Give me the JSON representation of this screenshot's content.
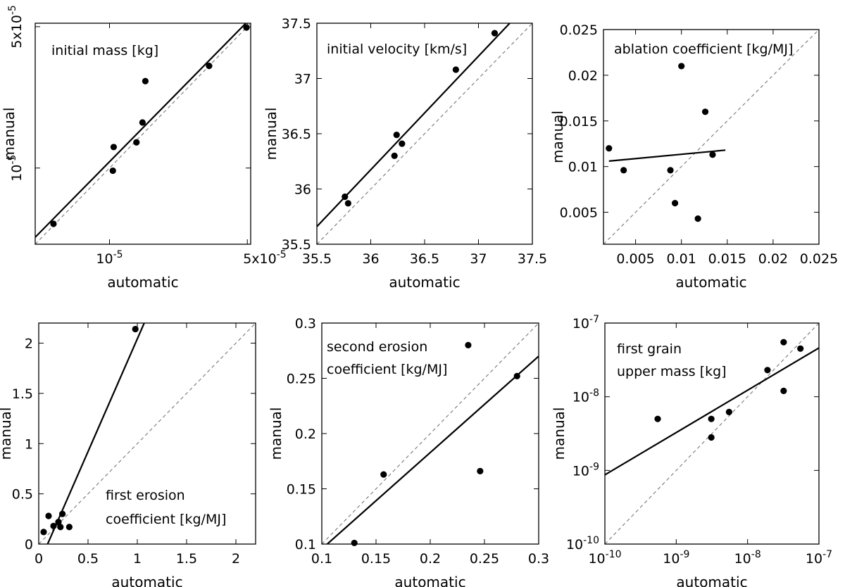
{
  "chart_data": [
    {
      "type": "scatter",
      "scale": "log",
      "annotation": [
        "initial mass [kg]"
      ],
      "xlabel": "automatic",
      "ylabel": "manual",
      "xlim": [
        4.2e-06,
        5.2e-05
      ],
      "ylim": [
        4.2e-06,
        5.2e-05
      ],
      "xticks": [
        {
          "v": 1e-05,
          "base": "10",
          "exp": "-5"
        },
        {
          "v": 5e-05,
          "base": "5x10",
          "exp": "-5"
        }
      ],
      "yticks": [
        {
          "v": 1e-05,
          "base": "10",
          "exp": "-5"
        },
        {
          "v": 5e-05,
          "base": "5x10",
          "exp": "-5"
        }
      ],
      "points": [
        {
          "x": 5.2e-06,
          "y": 5.3e-06
        },
        {
          "x": 1.04e-05,
          "y": 9.7e-06
        },
        {
          "x": 1.05e-05,
          "y": 1.27e-05
        },
        {
          "x": 1.37e-05,
          "y": 1.34e-05
        },
        {
          "x": 1.47e-05,
          "y": 1.68e-05
        },
        {
          "x": 1.52e-05,
          "y": 2.69e-05
        },
        {
          "x": 3.2e-05,
          "y": 3.2e-05
        },
        {
          "x": 4.95e-05,
          "y": 4.95e-05
        }
      ],
      "fit_line": [
        [
          4.2e-06,
          4.55e-06
        ],
        [
          5.2e-05,
          5.5e-05
        ]
      ]
    },
    {
      "type": "scatter",
      "scale": "linear",
      "annotation": [
        "initial velocity [km/s]"
      ],
      "xlabel": "automatic",
      "ylabel": "manual",
      "xlim": [
        35.5,
        37.5
      ],
      "ylim": [
        35.5,
        37.5
      ],
      "xticks": [
        {
          "v": 35.5,
          "label": "35.5"
        },
        {
          "v": 36,
          "label": "36"
        },
        {
          "v": 36.5,
          "label": "36.5"
        },
        {
          "v": 37,
          "label": "37"
        },
        {
          "v": 37.5,
          "label": "37.5"
        }
      ],
      "yticks": [
        {
          "v": 35.5,
          "label": "35.5"
        },
        {
          "v": 36,
          "label": "36"
        },
        {
          "v": 36.5,
          "label": "36.5"
        },
        {
          "v": 37,
          "label": "37"
        },
        {
          "v": 37.5,
          "label": "37.5"
        }
      ],
      "points": [
        {
          "x": 35.76,
          "y": 35.93
        },
        {
          "x": 35.79,
          "y": 35.87
        },
        {
          "x": 36.22,
          "y": 36.3
        },
        {
          "x": 36.24,
          "y": 36.49
        },
        {
          "x": 36.29,
          "y": 36.41
        },
        {
          "x": 36.79,
          "y": 37.08
        },
        {
          "x": 37.15,
          "y": 37.41
        }
      ],
      "fit_line": [
        [
          35.5,
          35.66
        ],
        [
          37.29,
          37.5
        ]
      ]
    },
    {
      "type": "scatter",
      "scale": "linear",
      "annotation": [
        "ablation coefficient [kg/MJ]"
      ],
      "xlabel": "automatic",
      "ylabel": "manual",
      "xlim": [
        0.0015,
        0.025
      ],
      "ylim": [
        0.0015,
        0.025
      ],
      "xticks": [
        {
          "v": 0.005,
          "label": "0.005"
        },
        {
          "v": 0.01,
          "label": "0.01"
        },
        {
          "v": 0.015,
          "label": "0.015"
        },
        {
          "v": 0.02,
          "label": "0.02"
        },
        {
          "v": 0.025,
          "label": "0.025"
        }
      ],
      "yticks": [
        {
          "v": 0.005,
          "label": "0.005"
        },
        {
          "v": 0.01,
          "label": "0.01"
        },
        {
          "v": 0.015,
          "label": "0.015"
        },
        {
          "v": 0.02,
          "label": "0.02"
        },
        {
          "v": 0.025,
          "label": "0.025"
        }
      ],
      "points": [
        {
          "x": 0.0021,
          "y": 0.012
        },
        {
          "x": 0.0037,
          "y": 0.0096
        },
        {
          "x": 0.0088,
          "y": 0.0096
        },
        {
          "x": 0.0093,
          "y": 0.006
        },
        {
          "x": 0.01,
          "y": 0.021
        },
        {
          "x": 0.0118,
          "y": 0.0043
        },
        {
          "x": 0.0126,
          "y": 0.016
        },
        {
          "x": 0.0134,
          "y": 0.0113
        }
      ],
      "fit_line": [
        [
          0.0021,
          0.0106
        ],
        [
          0.0148,
          0.0118
        ]
      ]
    },
    {
      "type": "scatter",
      "scale": "linear",
      "annotation": [
        "first erosion",
        "coefficient [kg/MJ]"
      ],
      "xlabel": "automatic",
      "ylabel": "manual",
      "xlim": [
        0,
        2.2
      ],
      "ylim": [
        0,
        2.2
      ],
      "xticks": [
        {
          "v": 0,
          "label": "0"
        },
        {
          "v": 0.5,
          "label": "0.5"
        },
        {
          "v": 1,
          "label": "1"
        },
        {
          "v": 1.5,
          "label": "1.5"
        },
        {
          "v": 2,
          "label": "2"
        }
      ],
      "yticks": [
        {
          "v": 0,
          "label": "0"
        },
        {
          "v": 0.5,
          "label": "0.5"
        },
        {
          "v": 1,
          "label": "1"
        },
        {
          "v": 1.5,
          "label": "1.5"
        },
        {
          "v": 2,
          "label": "2"
        }
      ],
      "points": [
        {
          "x": 0.05,
          "y": 0.12
        },
        {
          "x": 0.1,
          "y": 0.28
        },
        {
          "x": 0.15,
          "y": 0.18
        },
        {
          "x": 0.2,
          "y": 0.22
        },
        {
          "x": 0.22,
          "y": 0.17
        },
        {
          "x": 0.24,
          "y": 0.3
        },
        {
          "x": 0.31,
          "y": 0.17
        },
        {
          "x": 0.98,
          "y": 2.14
        }
      ],
      "fit_line": [
        [
          0.09,
          0
        ],
        [
          1.07,
          2.2
        ]
      ]
    },
    {
      "type": "scatter",
      "scale": "linear",
      "annotation": [
        "second erosion",
        "coefficient [kg/MJ]"
      ],
      "xlabel": "automatic",
      "ylabel": "manual",
      "xlim": [
        0.1,
        0.3
      ],
      "ylim": [
        0.1,
        0.3
      ],
      "xticks": [
        {
          "v": 0.1,
          "label": "0.1"
        },
        {
          "v": 0.15,
          "label": "0.15"
        },
        {
          "v": 0.2,
          "label": "0.2"
        },
        {
          "v": 0.25,
          "label": "0.25"
        },
        {
          "v": 0.3,
          "label": "0.3"
        }
      ],
      "yticks": [
        {
          "v": 0.1,
          "label": "0.1"
        },
        {
          "v": 0.15,
          "label": "0.15"
        },
        {
          "v": 0.2,
          "label": "0.2"
        },
        {
          "v": 0.25,
          "label": "0.25"
        },
        {
          "v": 0.3,
          "label": "0.3"
        }
      ],
      "points": [
        {
          "x": 0.13,
          "y": 0.101
        },
        {
          "x": 0.157,
          "y": 0.163
        },
        {
          "x": 0.235,
          "y": 0.28
        },
        {
          "x": 0.246,
          "y": 0.166
        },
        {
          "x": 0.28,
          "y": 0.252
        }
      ],
      "fit_line": [
        [
          0.105,
          0.1
        ],
        [
          0.3,
          0.27
        ]
      ]
    },
    {
      "type": "scatter",
      "scale": "log",
      "annotation": [
        "first grain",
        "upper mass [kg]"
      ],
      "xlabel": "automatic",
      "ylabel": "manual",
      "xlim": [
        1e-10,
        1e-07
      ],
      "ylim": [
        1e-10,
        1e-07
      ],
      "xticks": [
        {
          "v": 1e-10,
          "base": "10",
          "exp": "-10"
        },
        {
          "v": 1e-09,
          "base": "10",
          "exp": "-9"
        },
        {
          "v": 1e-08,
          "base": "10",
          "exp": "-8"
        },
        {
          "v": 1e-07,
          "base": "10",
          "exp": "-7"
        }
      ],
      "yticks": [
        {
          "v": 1e-10,
          "base": "10",
          "exp": "-10"
        },
        {
          "v": 1e-09,
          "base": "10",
          "exp": "-9"
        },
        {
          "v": 1e-08,
          "base": "10",
          "exp": "-8"
        },
        {
          "v": 1e-07,
          "base": "10",
          "exp": "-7"
        }
      ],
      "points": [
        {
          "x": 5.5e-10,
          "y": 5e-09
        },
        {
          "x": 3.1e-09,
          "y": 5e-09
        },
        {
          "x": 3.1e-09,
          "y": 2.8e-09
        },
        {
          "x": 5.5e-09,
          "y": 6.2e-09
        },
        {
          "x": 1.9e-08,
          "y": 2.3e-08
        },
        {
          "x": 3.2e-08,
          "y": 5.5e-08
        },
        {
          "x": 3.2e-08,
          "y": 1.2e-08
        },
        {
          "x": 5.5e-08,
          "y": 4.5e-08
        }
      ],
      "fit_line": [
        [
          1e-10,
          8.7e-10
        ],
        [
          1e-07,
          4.6e-08
        ]
      ]
    }
  ]
}
